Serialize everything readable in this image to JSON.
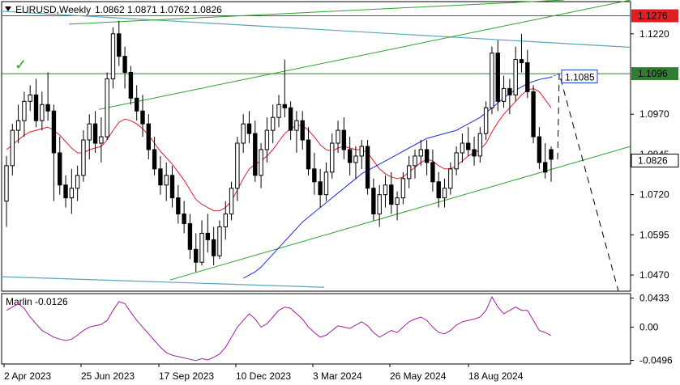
{
  "header": {
    "symbol": "EURUSD,Weekly",
    "ohlc": "1.0862 1.0871 1.0762 1.0826"
  },
  "colors": {
    "candle": "#000000",
    "ma_red": "#e0202a",
    "ma_blue": "#1a2ee6",
    "channel": "#2ca02c",
    "trend_teal": "#5aa5b5",
    "resistance": "#e02020",
    "oscillator": "#a020a0",
    "level_green": "#2e7d32",
    "target_blue": "#1e3fd0"
  },
  "icons": {
    "checkmark": "check-icon"
  },
  "chart_data": [
    {
      "type": "candlestick",
      "title": "EURUSD,Weekly",
      "ylim": [
        1.042,
        1.132
      ],
      "y_ticks": [
        "1.1220",
        "1.0970",
        "1.0845",
        "1.0720",
        "1.0595",
        "1.0470"
      ],
      "price_labels": [
        {
          "value": 1.1276,
          "text": "1.1276",
          "color": "#e02020"
        },
        {
          "value": 1.1096,
          "text": "1.1096",
          "color": "#2e7d32"
        },
        {
          "value": 1.0826,
          "text": "1.0826",
          "color": "#000000"
        }
      ],
      "target_label": {
        "value": 1.1085,
        "text": "1.1085"
      },
      "x_labels": [
        "2 Apr 2023",
        "25 Jun 2023",
        "17 Sep 2023",
        "10 Dec 2023",
        "3 Mar 2024",
        "26 May 2024",
        "18 Aug 2024"
      ],
      "horizontal_levels": [
        1.1276,
        1.1096
      ],
      "candles": [
        [
          1.07,
          1.084,
          1.062,
          1.081
        ],
        [
          1.081,
          1.094,
          1.078,
          1.092
        ],
        [
          1.092,
          1.1,
          1.088,
          1.095
        ],
        [
          1.095,
          1.104,
          1.09,
          1.101
        ],
        [
          1.101,
          1.106,
          1.098,
          1.103
        ],
        [
          1.103,
          1.108,
          1.093,
          1.095
        ],
        [
          1.095,
          1.104,
          1.092,
          1.1
        ],
        [
          1.1,
          1.11,
          1.095,
          1.098
        ],
        [
          1.098,
          1.1,
          1.07,
          1.085
        ],
        [
          1.085,
          1.09,
          1.072,
          1.075
        ],
        [
          1.075,
          1.078,
          1.068,
          1.071
        ],
        [
          1.071,
          1.08,
          1.066,
          1.074
        ],
        [
          1.074,
          1.081,
          1.07,
          1.078
        ],
        [
          1.078,
          1.092,
          1.076,
          1.089
        ],
        [
          1.089,
          1.097,
          1.083,
          1.094
        ],
        [
          1.094,
          1.098,
          1.085,
          1.088
        ],
        [
          1.088,
          1.096,
          1.082,
          1.09
        ],
        [
          1.09,
          1.11,
          1.089,
          1.108
        ],
        [
          1.108,
          1.124,
          1.105,
          1.122
        ],
        [
          1.122,
          1.126,
          1.112,
          1.115
        ],
        [
          1.115,
          1.118,
          1.105,
          1.11
        ],
        [
          1.11,
          1.112,
          1.1,
          1.102
        ],
        [
          1.102,
          1.106,
          1.095,
          1.098
        ],
        [
          1.098,
          1.103,
          1.09,
          1.094
        ],
        [
          1.094,
          1.097,
          1.083,
          1.086
        ],
        [
          1.086,
          1.09,
          1.078,
          1.08
        ],
        [
          1.08,
          1.084,
          1.072,
          1.075
        ],
        [
          1.075,
          1.082,
          1.07,
          1.078
        ],
        [
          1.078,
          1.081,
          1.068,
          1.071
        ],
        [
          1.071,
          1.075,
          1.063,
          1.066
        ],
        [
          1.066,
          1.07,
          1.06,
          1.063
        ],
        [
          1.063,
          1.066,
          1.052,
          1.055
        ],
        [
          1.055,
          1.06,
          1.048,
          1.051
        ],
        [
          1.051,
          1.064,
          1.05,
          1.06
        ],
        [
          1.06,
          1.066,
          1.054,
          1.058
        ],
        [
          1.058,
          1.062,
          1.05,
          1.053
        ],
        [
          1.053,
          1.064,
          1.052,
          1.062
        ],
        [
          1.062,
          1.07,
          1.058,
          1.066
        ],
        [
          1.066,
          1.076,
          1.064,
          1.074
        ],
        [
          1.074,
          1.09,
          1.07,
          1.088
        ],
        [
          1.088,
          1.097,
          1.085,
          1.094
        ],
        [
          1.094,
          1.098,
          1.088,
          1.091
        ],
        [
          1.091,
          1.095,
          1.076,
          1.078
        ],
        [
          1.078,
          1.088,
          1.074,
          1.086
        ],
        [
          1.086,
          1.096,
          1.082,
          1.092
        ],
        [
          1.092,
          1.1,
          1.088,
          1.096
        ],
        [
          1.096,
          1.103,
          1.093,
          1.1
        ],
        [
          1.1,
          1.114,
          1.096,
          1.099
        ],
        [
          1.099,
          1.101,
          1.089,
          1.092
        ],
        [
          1.092,
          1.098,
          1.085,
          1.095
        ],
        [
          1.095,
          1.098,
          1.086,
          1.089
        ],
        [
          1.089,
          1.093,
          1.078,
          1.08
        ],
        [
          1.08,
          1.085,
          1.072,
          1.076
        ],
        [
          1.076,
          1.08,
          1.068,
          1.072
        ],
        [
          1.072,
          1.082,
          1.07,
          1.079
        ],
        [
          1.079,
          1.091,
          1.077,
          1.088
        ],
        [
          1.088,
          1.095,
          1.085,
          1.092
        ],
        [
          1.092,
          1.096,
          1.083,
          1.086
        ],
        [
          1.086,
          1.09,
          1.078,
          1.082
        ],
        [
          1.082,
          1.087,
          1.077,
          1.084
        ],
        [
          1.084,
          1.089,
          1.08,
          1.087
        ],
        [
          1.087,
          1.089,
          1.072,
          1.074
        ],
        [
          1.074,
          1.077,
          1.064,
          1.066
        ],
        [
          1.066,
          1.075,
          1.062,
          1.072
        ],
        [
          1.072,
          1.078,
          1.068,
          1.075
        ],
        [
          1.075,
          1.079,
          1.066,
          1.069
        ],
        [
          1.069,
          1.073,
          1.064,
          1.071
        ],
        [
          1.071,
          1.079,
          1.069,
          1.077
        ],
        [
          1.077,
          1.084,
          1.074,
          1.081
        ],
        [
          1.081,
          1.086,
          1.077,
          1.084
        ],
        [
          1.084,
          1.089,
          1.081,
          1.086
        ],
        [
          1.086,
          1.089,
          1.078,
          1.082
        ],
        [
          1.082,
          1.086,
          1.073,
          1.076
        ],
        [
          1.076,
          1.079,
          1.068,
          1.071
        ],
        [
          1.071,
          1.077,
          1.068,
          1.074
        ],
        [
          1.074,
          1.082,
          1.072,
          1.08
        ],
        [
          1.08,
          1.087,
          1.078,
          1.085
        ],
        [
          1.085,
          1.091,
          1.082,
          1.088
        ],
        [
          1.088,
          1.093,
          1.084,
          1.086
        ],
        [
          1.086,
          1.09,
          1.081,
          1.084
        ],
        [
          1.084,
          1.093,
          1.082,
          1.091
        ],
        [
          1.091,
          1.101,
          1.089,
          1.099
        ],
        [
          1.099,
          1.118,
          1.097,
          1.116
        ],
        [
          1.116,
          1.12,
          1.098,
          1.101
        ],
        [
          1.101,
          1.109,
          1.099,
          1.105
        ],
        [
          1.105,
          1.108,
          1.097,
          1.103
        ],
        [
          1.103,
          1.118,
          1.101,
          1.114
        ],
        [
          1.114,
          1.122,
          1.11,
          1.113
        ],
        [
          1.113,
          1.117,
          1.102,
          1.104
        ],
        [
          1.104,
          1.106,
          1.088,
          1.09
        ],
        [
          1.09,
          1.093,
          1.08,
          1.082
        ],
        [
          1.082,
          1.088,
          1.077,
          1.079
        ],
        [
          1.086,
          1.087,
          1.076,
          1.083
        ]
      ],
      "series": [
        {
          "values": [
            1.086,
            1.0875,
            1.089,
            1.0905,
            1.0915,
            1.092,
            1.0925,
            1.093,
            1.092,
            1.0905,
            1.0885,
            1.0865,
            1.085,
            1.085,
            1.086,
            1.0865,
            1.087,
            1.089,
            1.092,
            1.0945,
            1.0955,
            1.095,
            1.094,
            1.0925,
            1.0905,
            1.088,
            1.0855,
            1.0835,
            1.0815,
            1.079,
            1.0765,
            1.0735,
            1.0705,
            1.069,
            1.068,
            1.067,
            1.067,
            1.068,
            1.07,
            1.0735,
            1.077,
            1.08,
            1.0815,
            1.0825,
            1.084,
            1.086,
            1.0885,
            1.091,
            1.0925,
            1.0935,
            1.0935,
            1.092,
            1.09,
            1.0875,
            1.086,
            1.0855,
            1.0865,
            1.087,
            1.0865,
            1.086,
            1.086,
            1.085,
            1.0825,
            1.08,
            1.0785,
            1.0775,
            1.077,
            1.0775,
            1.079,
            1.0805,
            1.082,
            1.083,
            1.0825,
            1.081,
            1.08,
            1.08,
            1.081,
            1.0825,
            1.084,
            1.085,
            1.086,
            1.088,
            1.0915,
            1.0945,
            1.097,
            1.099,
            1.101,
            1.103,
            1.1045,
            1.105,
            1.104,
            1.1015,
            1.099
          ]
        },
        {
          "values": [
            null,
            null,
            null,
            null,
            null,
            null,
            null,
            null,
            null,
            null,
            null,
            null,
            null,
            null,
            null,
            null,
            null,
            null,
            null,
            null,
            null,
            null,
            null,
            null,
            null,
            null,
            null,
            null,
            null,
            null,
            null,
            null,
            null,
            null,
            null,
            null,
            null,
            null,
            null,
            null,
            1.046,
            1.047,
            1.048,
            1.0495,
            1.0515,
            1.0535,
            1.0555,
            1.0575,
            1.0595,
            1.0615,
            1.0635,
            1.065,
            1.0665,
            1.068,
            1.0695,
            1.071,
            1.0725,
            1.074,
            1.0755,
            1.077,
            1.0785,
            1.0795,
            1.0805,
            1.0815,
            1.0825,
            1.0835,
            1.0845,
            1.0855,
            1.0865,
            1.0875,
            1.0885,
            1.0895,
            1.09,
            1.0905,
            1.091,
            1.0915,
            1.092,
            1.093,
            1.094,
            1.095,
            1.096,
            1.0975,
            1.099,
            1.1005,
            1.102,
            1.1035,
            1.1045,
            1.1055,
            1.1065,
            1.1072,
            1.1078,
            1.1082,
            1.1085
          ]
        }
      ]
    },
    {
      "type": "line",
      "title": "Marlin -0.0126",
      "ylim": [
        -0.055,
        0.05
      ],
      "y_ticks": [
        "0.0433",
        "0.00",
        "-0.0496"
      ],
      "series": [
        {
          "values": [
            0.025,
            0.03,
            0.035,
            0.028,
            0.015,
            0.005,
            -0.005,
            -0.01,
            -0.015,
            -0.018,
            -0.02,
            -0.018,
            -0.012,
            -0.005,
            0.0,
            0.002,
            0.004,
            0.01,
            0.025,
            0.038,
            0.035,
            0.022,
            0.01,
            0.0,
            -0.01,
            -0.02,
            -0.03,
            -0.038,
            -0.042,
            -0.044,
            -0.046,
            -0.048,
            -0.05,
            -0.047,
            -0.049,
            -0.045,
            -0.04,
            -0.03,
            -0.015,
            0.0,
            0.01,
            0.02,
            0.012,
            0.0,
            0.005,
            0.015,
            0.025,
            0.03,
            0.028,
            0.02,
            0.012,
            0.0,
            -0.008,
            -0.015,
            -0.012,
            -0.005,
            0.002,
            0.0,
            -0.002,
            0.003,
            0.008,
            0.002,
            -0.008,
            -0.015,
            -0.01,
            -0.005,
            -0.008,
            0.0,
            0.008,
            0.012,
            0.015,
            0.01,
            0.0,
            -0.008,
            -0.01,
            -0.005,
            0.003,
            0.008,
            0.01,
            0.012,
            0.015,
            0.025,
            0.045,
            0.03,
            0.02,
            0.025,
            0.03,
            0.025,
            0.025,
            0.01,
            -0.005,
            -0.008,
            -0.0126
          ]
        }
      ]
    }
  ]
}
